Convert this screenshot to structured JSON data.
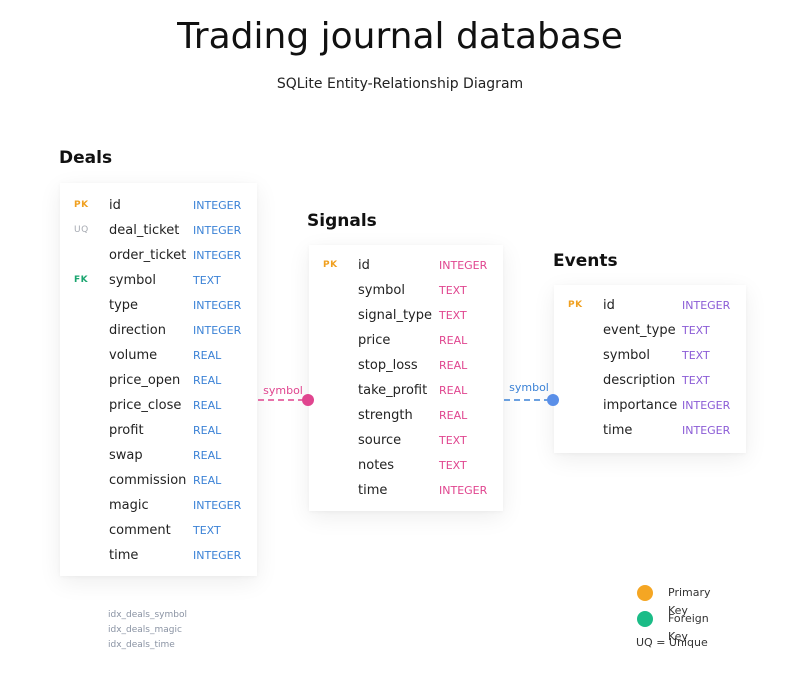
{
  "title": "Trading journal database",
  "subtitle": "SQLite Entity-Relationship Diagram",
  "colors": {
    "deals": "#3b82d6",
    "signals": "#e0458f",
    "events": "#8b5cd6",
    "pk": "#f5a623",
    "fk": "#1bbc87"
  },
  "tables": {
    "deals": {
      "name": "Deals",
      "columns": [
        {
          "key": "PK",
          "name": "id",
          "type": "INTEGER"
        },
        {
          "key": "UQ",
          "name": "deal_ticket",
          "type": "INTEGER"
        },
        {
          "key": "",
          "name": "order_ticket",
          "type": "INTEGER"
        },
        {
          "key": "FK",
          "name": "symbol",
          "type": "TEXT"
        },
        {
          "key": "",
          "name": "type",
          "type": "INTEGER"
        },
        {
          "key": "",
          "name": "direction",
          "type": "INTEGER"
        },
        {
          "key": "",
          "name": "volume",
          "type": "REAL"
        },
        {
          "key": "",
          "name": "price_open",
          "type": "REAL"
        },
        {
          "key": "",
          "name": "price_close",
          "type": "REAL"
        },
        {
          "key": "",
          "name": "profit",
          "type": "REAL"
        },
        {
          "key": "",
          "name": "swap",
          "type": "REAL"
        },
        {
          "key": "",
          "name": "commission",
          "type": "REAL"
        },
        {
          "key": "",
          "name": "magic",
          "type": "INTEGER"
        },
        {
          "key": "",
          "name": "comment",
          "type": "TEXT"
        },
        {
          "key": "",
          "name": "time",
          "type": "INTEGER"
        }
      ],
      "indexes": [
        "idx_deals_symbol",
        "idx_deals_magic",
        "idx_deals_time"
      ]
    },
    "signals": {
      "name": "Signals",
      "columns": [
        {
          "key": "PK",
          "name": "id",
          "type": "INTEGER"
        },
        {
          "key": "",
          "name": "symbol",
          "type": "TEXT"
        },
        {
          "key": "",
          "name": "signal_type",
          "type": "TEXT"
        },
        {
          "key": "",
          "name": "price",
          "type": "REAL"
        },
        {
          "key": "",
          "name": "stop_loss",
          "type": "REAL"
        },
        {
          "key": "",
          "name": "take_profit",
          "type": "REAL"
        },
        {
          "key": "",
          "name": "strength",
          "type": "REAL"
        },
        {
          "key": "",
          "name": "source",
          "type": "TEXT"
        },
        {
          "key": "",
          "name": "notes",
          "type": "TEXT"
        },
        {
          "key": "",
          "name": "time",
          "type": "INTEGER"
        }
      ]
    },
    "events": {
      "name": "Events",
      "columns": [
        {
          "key": "PK",
          "name": "id",
          "type": "INTEGER"
        },
        {
          "key": "",
          "name": "event_type",
          "type": "TEXT"
        },
        {
          "key": "",
          "name": "symbol",
          "type": "TEXT"
        },
        {
          "key": "",
          "name": "description",
          "type": "TEXT"
        },
        {
          "key": "",
          "name": "importance",
          "type": "INTEGER"
        },
        {
          "key": "",
          "name": "time",
          "type": "INTEGER"
        }
      ]
    }
  },
  "relations": [
    {
      "from": "deals",
      "to": "signals",
      "label": "symbol"
    },
    {
      "from": "signals",
      "to": "events",
      "label": "symbol"
    }
  ],
  "legend": {
    "primary_key": "Primary Key",
    "foreign_key": "Foreign Key",
    "unique": "UQ = Unique"
  }
}
